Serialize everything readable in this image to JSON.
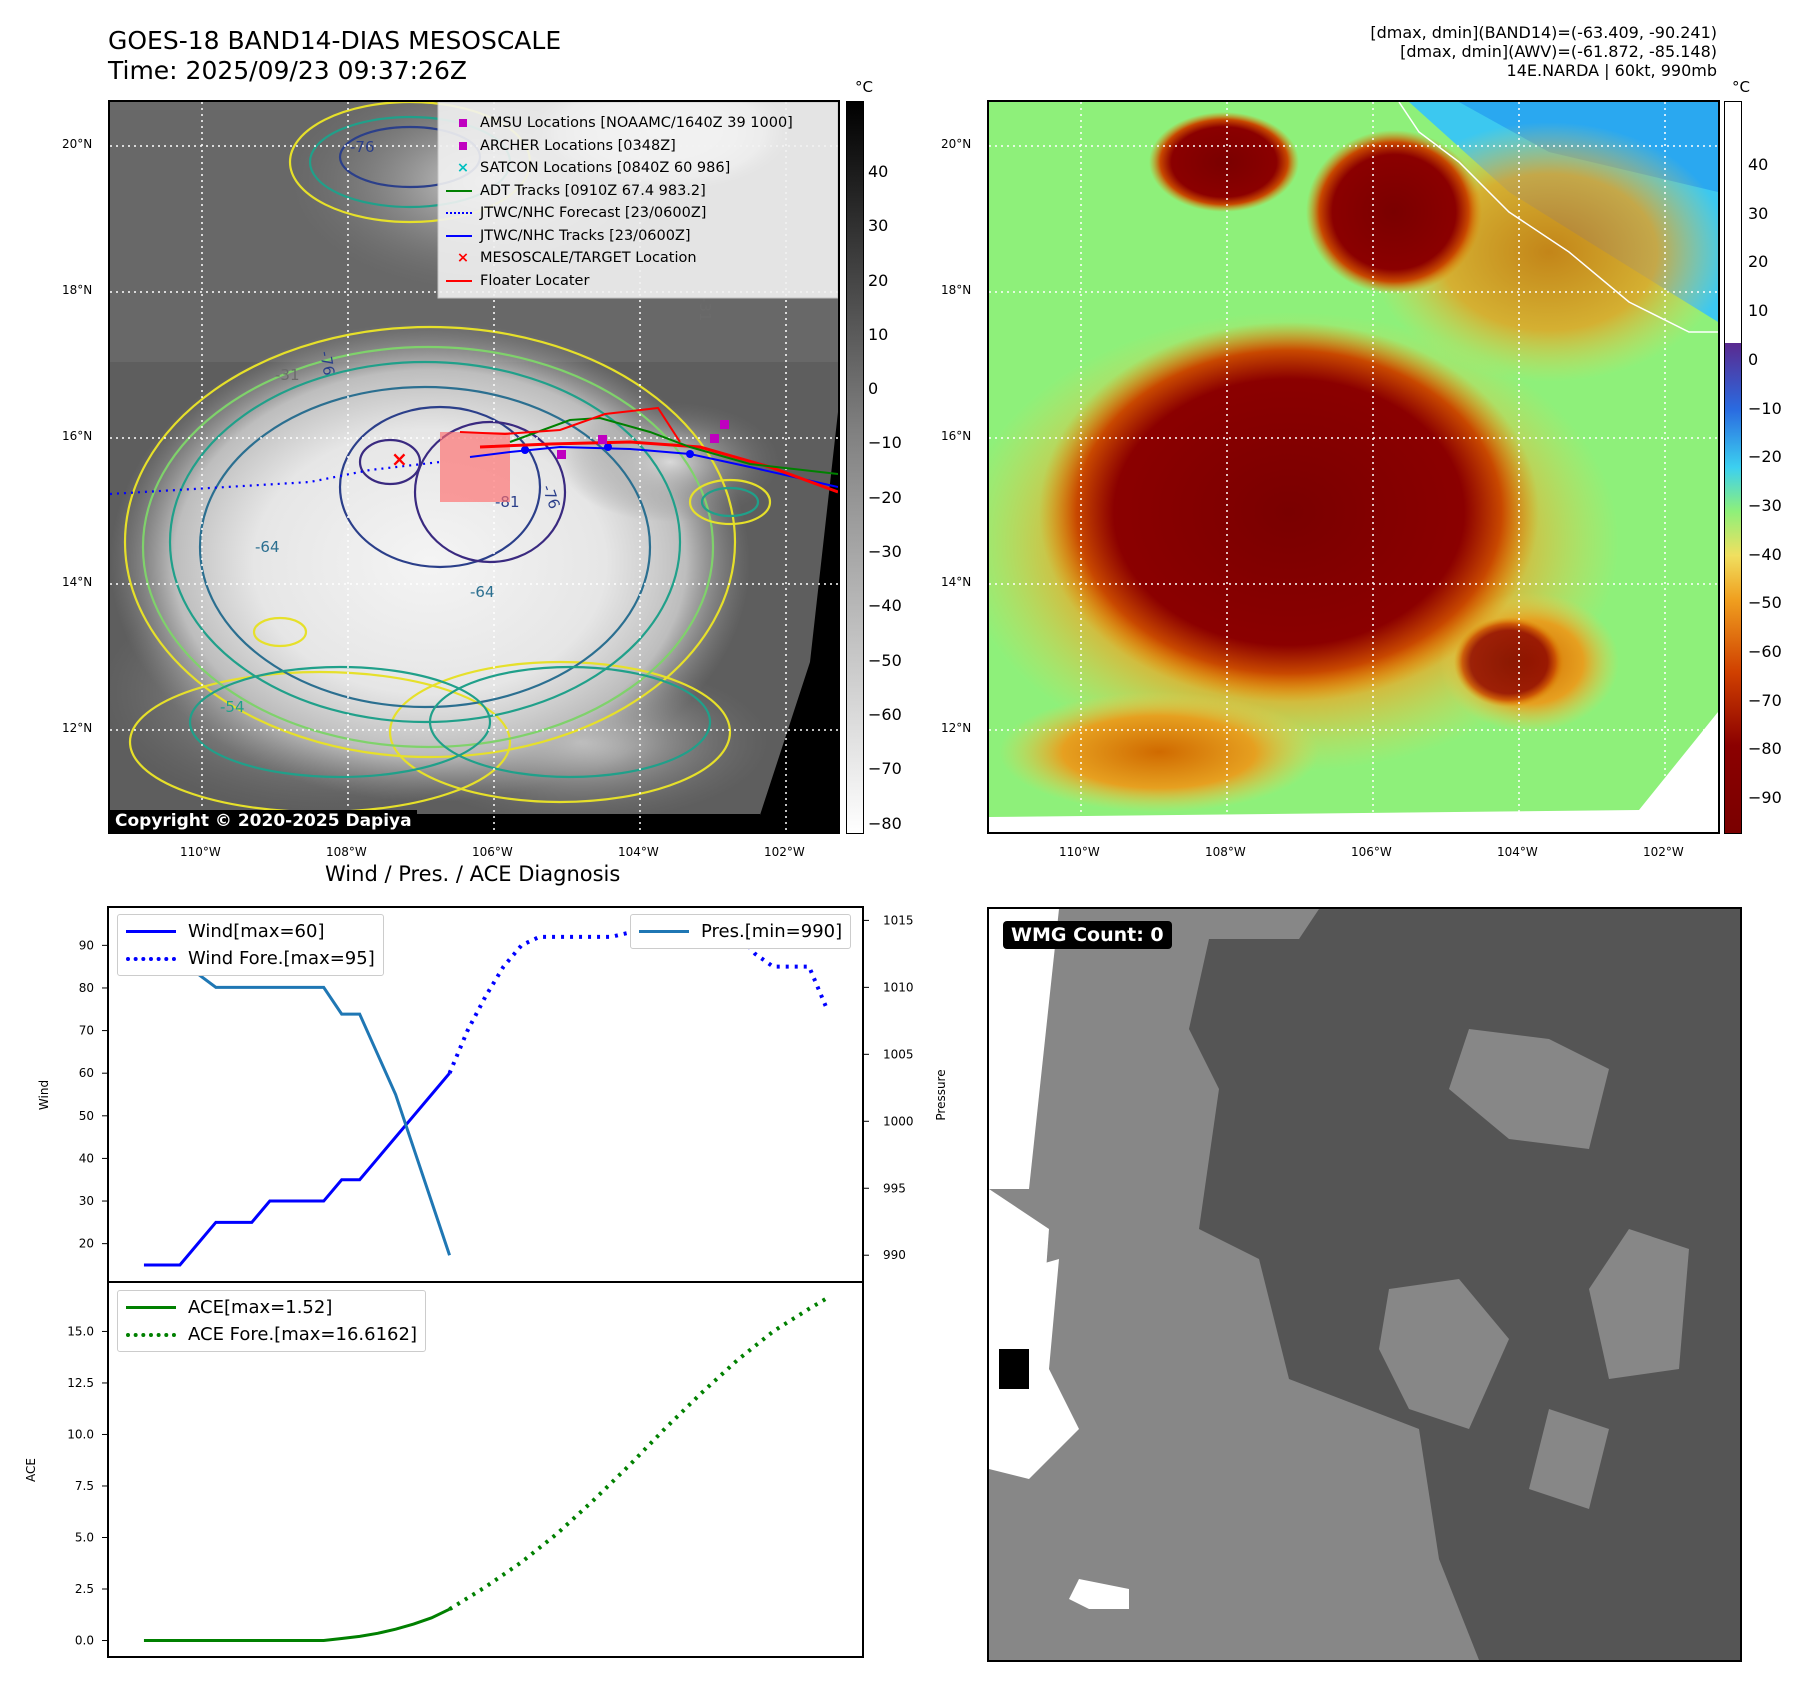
{
  "header": {
    "title_line1": "GOES-18 BAND14-DIAS MESOSCALE",
    "title_line2": "Time: 2025/09/23 09:37:26Z",
    "info_line1": "[dmax, dmin](BAND14)=(-63.409, -90.241)",
    "info_line2": "[dmax, dmin](AWV)=(-61.872, -85.148)",
    "info_line3": "14E.NARDA | 60kt, 990mb"
  },
  "map": {
    "lat_labels": [
      "20°N",
      "18°N",
      "16°N",
      "14°N",
      "12°N"
    ],
    "lon_labels": [
      "110°W",
      "108°W",
      "106°W",
      "104°W",
      "102°W"
    ],
    "copyright": "Copyright © 2020-2025 Dapiya",
    "contour_labels": [
      "-76",
      "-31",
      "-76",
      "-81",
      "-76",
      "-64",
      "-64",
      "-54",
      "-31"
    ],
    "legend": [
      {
        "label": "AMSU Locations [NOAAMC/1640Z 39 1000]",
        "color": "#c000c0",
        "marker": "square"
      },
      {
        "label": "ARCHER Locations [0348Z]",
        "color": "#c000c0",
        "marker": "square"
      },
      {
        "label": "SATCON Locations [0840Z 60 986]",
        "color": "#00c0c0",
        "marker": "x"
      },
      {
        "label": "ADT Tracks [0910Z 67.4 983.2]",
        "color": "#008000",
        "marker": "line"
      },
      {
        "label": "JTWC/NHC Forecast [23/0600Z]",
        "color": "#0000ff",
        "marker": "dotted"
      },
      {
        "label": "JTWC/NHC Tracks [23/0600Z]",
        "color": "#0000ff",
        "marker": "line-dot"
      },
      {
        "label": "MESOSCALE/TARGET Location",
        "color": "#ff0000",
        "marker": "x"
      },
      {
        "label": "Floater Locater",
        "color": "#ff0000",
        "marker": "line"
      }
    ]
  },
  "colorbars": {
    "unit": "°C",
    "gray_ticks": [
      "40",
      "30",
      "20",
      "10",
      "0",
      "−10",
      "−20",
      "−30",
      "−40",
      "−50",
      "−60",
      "−70",
      "−80"
    ],
    "color_ticks": [
      "40",
      "30",
      "20",
      "10",
      "0",
      "−10",
      "−20",
      "−30",
      "−40",
      "−50",
      "−60",
      "−70",
      "−80",
      "−90"
    ]
  },
  "chart_data": [
    {
      "type": "line",
      "title": "Wind / Pres. / ACE Diagnosis",
      "ylabel": "Wind",
      "ylabel_right": "Pressure",
      "ylim": [
        11,
        99
      ],
      "ylim_right": [
        988,
        1016
      ],
      "yticks": [
        20,
        30,
        40,
        50,
        60,
        70,
        80,
        90
      ],
      "yticks_right": [
        990,
        995,
        1000,
        1005,
        1010,
        1015
      ],
      "legend_left": [
        "Wind[max=60]",
        "Wind Fore.[max=95]"
      ],
      "legend_right": [
        "Pres.[min=990]"
      ],
      "series": [
        {
          "name": "Wind[max=60]",
          "color": "#0000ff",
          "style": "solid",
          "x": [
            0,
            1,
            2,
            3,
            4,
            5,
            6,
            7,
            8,
            9,
            10,
            11,
            12,
            13,
            14,
            15,
            16,
            17,
            18,
            19,
            20
          ],
          "values": [
            15,
            15,
            15,
            20,
            25,
            25,
            25,
            30,
            30,
            30,
            30,
            35,
            35,
            40,
            45,
            50,
            55,
            60,
            null,
            null,
            null
          ]
        },
        {
          "name": "Wind Fore.[max=95]",
          "color": "#0000ff",
          "style": "dotted",
          "x": [
            17,
            18,
            19,
            20,
            21,
            22,
            23,
            24,
            25,
            26,
            27,
            28,
            29,
            30,
            31,
            32,
            33,
            34,
            35,
            36,
            37,
            38
          ],
          "values": [
            60,
            70,
            78,
            85,
            90,
            92,
            92,
            92,
            92,
            92,
            93,
            95,
            95,
            95,
            95,
            95,
            93,
            88,
            85,
            85,
            85,
            75
          ]
        },
        {
          "name": "Pres.[min=990]",
          "color": "#1f77b4",
          "style": "solid",
          "axis": "right",
          "x": [
            0,
            1,
            2,
            3,
            4,
            5,
            6,
            7,
            8,
            9,
            10,
            11,
            12,
            13,
            14,
            15,
            16,
            17
          ],
          "values": [
            1015,
            1015,
            1015,
            1011,
            1010,
            1010,
            1010,
            1010,
            1010,
            1010,
            1010,
            1008,
            1008,
            1005,
            1002,
            998,
            994,
            990
          ]
        }
      ]
    },
    {
      "type": "line",
      "ylabel": "ACE",
      "ylim": [
        -0.8,
        17.4
      ],
      "yticks": [
        0.0,
        2.5,
        5.0,
        7.5,
        10.0,
        12.5,
        15.0
      ],
      "ytick_labels": [
        "0.0",
        "2.5",
        "5.0",
        "7.5",
        "10.0",
        "12.5",
        "15.0"
      ],
      "legend": [
        "ACE[max=1.52]",
        "ACE Fore.[max=16.6162]"
      ],
      "series": [
        {
          "name": "ACE[max=1.52]",
          "color": "#008000",
          "style": "solid",
          "x": [
            0,
            2,
            4,
            6,
            8,
            10,
            11,
            12,
            13,
            14,
            15,
            16,
            17
          ],
          "values": [
            0,
            0,
            0,
            0,
            0,
            0,
            0.1,
            0.2,
            0.35,
            0.55,
            0.8,
            1.1,
            1.52
          ]
        },
        {
          "name": "ACE Fore.[max=16.6162]",
          "color": "#008000",
          "style": "dotted",
          "x": [
            17,
            19,
            21,
            23,
            25,
            27,
            29,
            31,
            33,
            35,
            37,
            38
          ],
          "values": [
            1.52,
            2.6,
            3.8,
            5.2,
            6.8,
            8.5,
            10.3,
            12.0,
            13.6,
            15.0,
            16.1,
            16.6162
          ]
        }
      ]
    }
  ],
  "wmg": {
    "label": "WMG Count: 0"
  }
}
